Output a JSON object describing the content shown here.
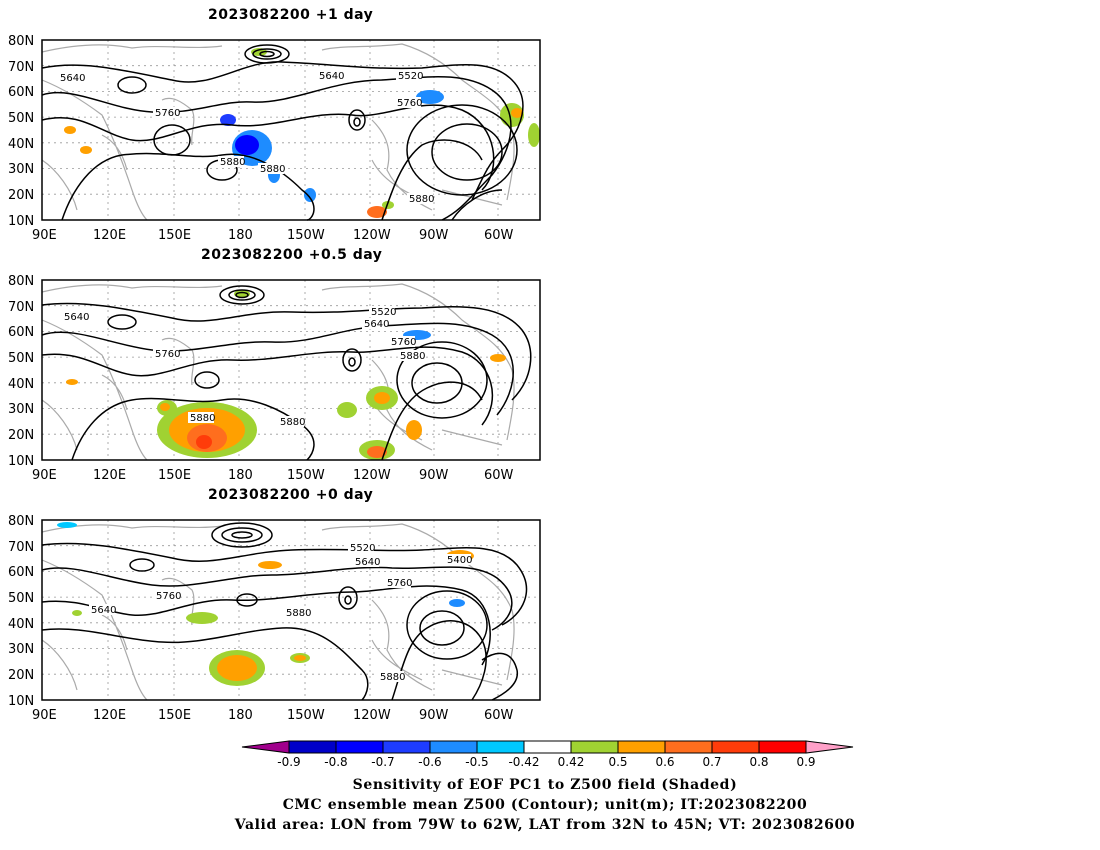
{
  "panels": [
    {
      "title": "2023082200  +1 day",
      "contour_labels": [
        "5640",
        "5520",
        "5760",
        "5880",
        "5880",
        "5880",
        "5760",
        "5640"
      ]
    },
    {
      "title": "2023082200  +0.5 day",
      "contour_labels": [
        "5640",
        "5520",
        "5640",
        "5760",
        "5760",
        "5880",
        "5880",
        "5880"
      ]
    },
    {
      "title": "2023082200  +0 day",
      "contour_labels": [
        "5520",
        "5400",
        "5640",
        "5760",
        "5760",
        "5640",
        "5880",
        "5880"
      ]
    }
  ],
  "axes": {
    "lat_labels": [
      "80N",
      "70N",
      "60N",
      "50N",
      "40N",
      "30N",
      "20N",
      "10N"
    ],
    "lon_labels": [
      "90E",
      "120E",
      "150E",
      "180",
      "150W",
      "120W",
      "90W",
      "60W"
    ]
  },
  "colorbar": {
    "labels": [
      "-0.9",
      "-0.8",
      "-0.7",
      "-0.6",
      "-0.5",
      "-0.42",
      "0.42",
      "0.5",
      "0.6",
      "0.7",
      "0.8",
      "0.9"
    ],
    "colors": [
      "#a0008c",
      "#0000c8",
      "#0000ff",
      "#1e3cff",
      "#1e8cff",
      "#00c8ff",
      "#ffffff",
      "#a0d232",
      "#ffa000",
      "#ff6e1e",
      "#ff3c0a",
      "#ff0000",
      "#ffa0c8"
    ]
  },
  "caption": {
    "line1": "Sensitivity of EOF PC1 to Z500 field (Shaded)",
    "line2": "CMC ensemble mean Z500 (Contour); unit(m); IT:2023082200",
    "line3": "Valid area: LON from 79W to 62W, LAT from 32N to 45N; VT: 2023082600"
  }
}
